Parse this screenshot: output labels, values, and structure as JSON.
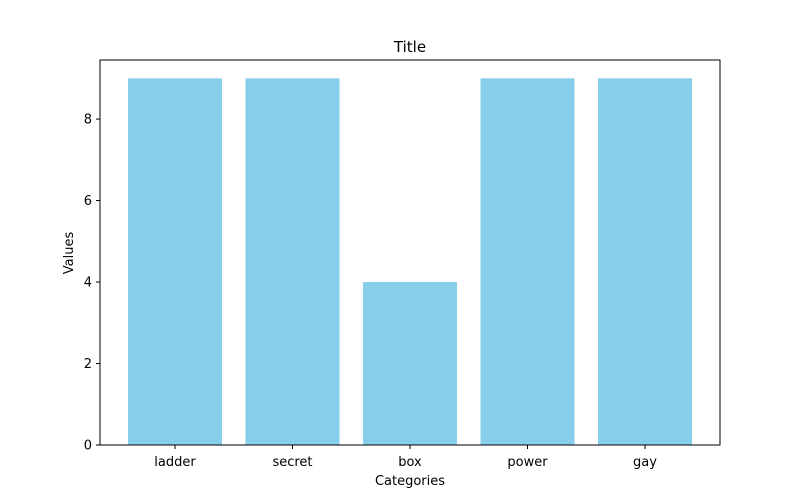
{
  "chart_data": {
    "type": "bar",
    "title": "Title",
    "xlabel": "Categories",
    "ylabel": "Values",
    "categories": [
      "ladder",
      "secret",
      "box",
      "power",
      "gay"
    ],
    "values": [
      9,
      9,
      4,
      9,
      9
    ],
    "ylim": [
      0,
      9.45
    ],
    "yticks": [
      0,
      2,
      4,
      6,
      8
    ],
    "bar_color": "#87ceeb",
    "grid": false,
    "legend": "none"
  }
}
